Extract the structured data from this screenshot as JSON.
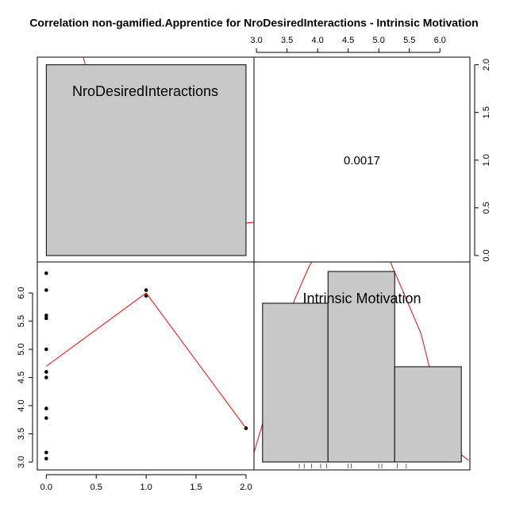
{
  "chart_data": {
    "type": "pairs",
    "title": "Correlation non-gamified.Apprentice for NroDesiredInteractions - Intrinsic Motivation",
    "variables": [
      "NroDesiredInteractions",
      "Intrinsic Motivation"
    ],
    "correlation": 0.0017,
    "xlim": [
      -0.09,
      2.08
    ],
    "xticks": [
      {
        "value": 0,
        "label": "0.0"
      },
      {
        "value": 0.5,
        "label": "0.5"
      },
      {
        "value": 1,
        "label": "1.0"
      },
      {
        "value": 1.5,
        "label": "1.5"
      },
      {
        "value": 2,
        "label": "2.0"
      }
    ],
    "ylim": [
      2.86,
      6.55
    ],
    "yticks": [
      {
        "value": 3,
        "label": "3.0"
      },
      {
        "value": 3.5,
        "label": "3.5"
      },
      {
        "value": 4,
        "label": "4.0"
      },
      {
        "value": 4.5,
        "label": "4.5"
      },
      {
        "value": 5,
        "label": "5.0"
      },
      {
        "value": 5.5,
        "label": "5.5"
      },
      {
        "value": 6,
        "label": "6.0"
      }
    ],
    "x2lim": [
      2.96,
      6.49
    ],
    "x2ticks": [
      {
        "value": 3,
        "label": "3.0"
      },
      {
        "value": 3.5,
        "label": "3.5"
      },
      {
        "value": 4,
        "label": "4.0"
      },
      {
        "value": 4.5,
        "label": "4.5"
      },
      {
        "value": 5,
        "label": "5.0"
      },
      {
        "value": 5.5,
        "label": "5.5"
      },
      {
        "value": 6,
        "label": "6.0"
      }
    ],
    "y2lim": [
      -0.067,
      2.08
    ],
    "y2ticks": [
      {
        "value": 0,
        "label": "0.0"
      },
      {
        "value": 0.5,
        "label": "0.5"
      },
      {
        "value": 1,
        "label": "1.0"
      },
      {
        "value": 1.5,
        "label": "1.5"
      },
      {
        "value": 2,
        "label": "2.0"
      }
    ],
    "hist1": {
      "bins": [
        0,
        2
      ],
      "values": [
        2
      ],
      "color": "#c8c8c8",
      "density": {
        "x": [
          0.37,
          0.57,
          0.73,
          0.97,
          1.13,
          1.37,
          1.6,
          1.84,
          2.08
        ],
        "y": [
          2.08,
          1.3,
          0.85,
          0.75,
          0.68,
          0.39,
          0.29,
          0.32,
          0.35
        ],
        "color": "#ff0000"
      }
    },
    "hist2": {
      "bins": [
        3.1,
        4.17,
        5.26,
        6.35
      ],
      "values": [
        5,
        6,
        3
      ],
      "count_lim": [
        -0.25,
        6.3
      ],
      "color": "#c8c8c8",
      "rug": [
        3.7,
        3.78,
        3.9,
        4.05,
        4.15,
        4.5,
        4.55,
        5.0,
        5.05,
        5.3,
        5.45
      ],
      "density": {
        "x": [
          2.96,
          3.35,
          3.61,
          3.87,
          4.7,
          5.69,
          5.95,
          6.21,
          6.47
        ],
        "y": [
          0.3,
          2.8,
          5.05,
          6.2,
          8.5,
          4.05,
          2.05,
          0.43,
          0.05
        ],
        "color": "#ff0000"
      }
    },
    "scatter": {
      "x": [
        0,
        0,
        0,
        0,
        0,
        0,
        0,
        0,
        0,
        0,
        0,
        1,
        1,
        2
      ],
      "y": [
        6.35,
        6.05,
        5.6,
        5.55,
        5.0,
        4.6,
        4.5,
        3.95,
        3.78,
        3.17,
        3.06,
        6.05,
        5.95,
        3.6
      ],
      "color": "#000000"
    },
    "smooth": {
      "x": [
        0,
        1,
        2
      ],
      "y": [
        4.7,
        6.0,
        3.6
      ],
      "color": "#ff0000"
    }
  }
}
